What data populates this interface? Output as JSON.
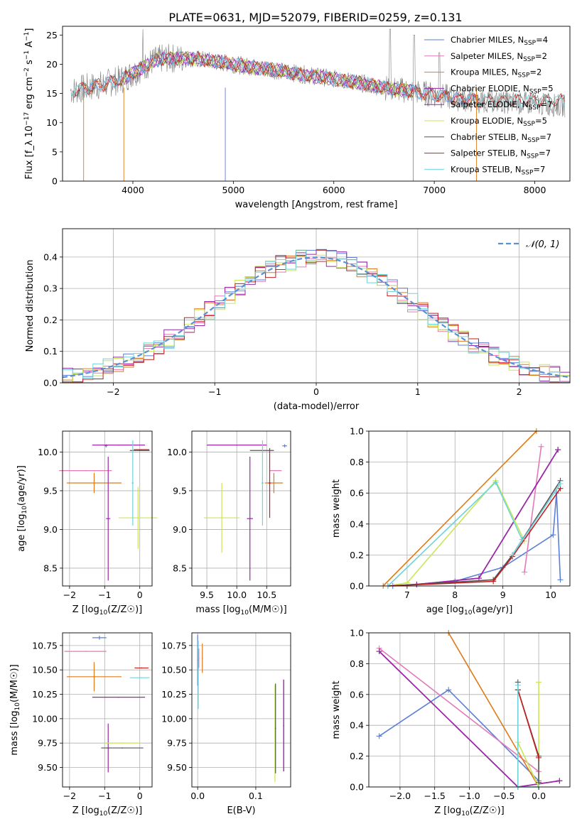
{
  "figure": {
    "title": "PLATE=0631, MJD=52079, FIBERID=0259, z=0.131"
  },
  "colors": {
    "chabrier_miles": "#5b7fd6",
    "salpeter_miles": "#e27ab8",
    "kroupa_miles": "#e07b1a",
    "chabrier_elodie": "#9a27a8",
    "salpeter_elodie": "#9a27a8",
    "kroupa_elodie": "#c8e65a",
    "chabrier_stelib": "#555555",
    "salpeter_stelib": "#c41e1e",
    "kroupa_stelib": "#6fd3d9",
    "normal_curve": "#5b8fd6",
    "grid": "#b0b0b0"
  },
  "chart_data": [
    {
      "id": "spectrum",
      "type": "line",
      "xlabel": "wavelength [Angstrom, rest frame]",
      "ylabel": "Flux [f_λ 10^-17 erg cm^-2 s^-1 A^-1]",
      "xlim": [
        3300,
        8350
      ],
      "ylim": [
        0,
        26.5
      ],
      "xticks": [
        4000,
        5000,
        6000,
        7000,
        8000
      ],
      "yticks": [
        0,
        5,
        10,
        15,
        20,
        25
      ],
      "grid": false,
      "legend_position": "top-right",
      "legend": [
        "Chabrier MILES, N_SSP=4",
        "Salpeter MILES, N_SSP=2",
        "Kroupa MILES, N_SSP=2",
        "Chabrier ELODIE, N_SSP=5",
        "Salpeter ELODIE, N_SSP=7",
        "Kroupa ELODIE, N_SSP=5",
        "Chabrier STELIB, N_SSP=7",
        "Salpeter STELIB, N_SSP=7",
        "Kroupa STELIB, N_SSP=7"
      ],
      "continuum": {
        "x": [
          3400,
          3500,
          3600,
          3700,
          3800,
          3900,
          4000,
          4100,
          4200,
          4300,
          4400,
          4600,
          4800,
          5000,
          5200,
          5400,
          5600,
          5800,
          6000,
          6200,
          6400,
          6600,
          6800,
          7000,
          7200,
          7400
        ],
        "y": [
          15.5,
          15.8,
          16.2,
          16.5,
          17.0,
          17.5,
          18.5,
          19.5,
          20.5,
          21.0,
          21.0,
          21.0,
          20.5,
          20.0,
          19.5,
          19.0,
          18.5,
          18.0,
          17.5,
          17.0,
          16.3,
          15.8,
          15.3,
          14.8,
          14.2,
          13.8
        ]
      }
    },
    {
      "id": "residuals",
      "type": "line",
      "xlabel": "(data-model)/error",
      "ylabel": "Normed distribution",
      "xlim": [
        -2.5,
        2.5
      ],
      "ylim": [
        0,
        0.49
      ],
      "xticks": [
        -2,
        -1,
        0,
        1,
        2
      ],
      "yticks": [
        0.0,
        0.1,
        0.2,
        0.3,
        0.4
      ],
      "grid": true,
      "legend_position": "top-right",
      "legend": [
        "N(0,1)"
      ],
      "series": [
        {
          "name": "N(0,1)",
          "style": "dashed",
          "mean": 0,
          "sigma": 1
        }
      ]
    },
    {
      "id": "age_vs_Z",
      "type": "scatter",
      "xlabel": "Z [log10(Z/Z☉)]",
      "ylabel": "age  [log10(age/yr)]",
      "xlim": [
        -2.2,
        0.35
      ],
      "ylim": [
        8.27,
        10.27
      ],
      "xticks": [
        -2,
        -1,
        0
      ],
      "yticks": [
        8.5,
        9.0,
        9.5,
        10.0
      ],
      "grid": true,
      "points": [
        {
          "key": "chabrier_miles",
          "x": -0.96,
          "y": 10.08,
          "xerr": 0.04,
          "yerr": 0.02
        },
        {
          "key": "salpeter_miles",
          "x": -1.55,
          "y": 9.76,
          "xerr": 0.75,
          "yerr": 0.0
        },
        {
          "key": "kroupa_miles",
          "x": -1.3,
          "y": 9.6,
          "xerr": 0.78,
          "yerr": 0.13
        },
        {
          "key": "chabrier_elodie",
          "x": -0.9,
          "y": 9.14,
          "xerr": 0.06,
          "yerr": 0.8
        },
        {
          "key": "salpeter_elodie",
          "x": -0.6,
          "y": 10.09,
          "xerr": 0.75,
          "yerr": 0.0
        },
        {
          "key": "kroupa_elodie",
          "x": -0.05,
          "y": 9.15,
          "xerr": 0.55,
          "yerr": 0.4
        },
        {
          "key": "chabrier_stelib",
          "x": 0.0,
          "y": 10.02,
          "xerr": 0.28,
          "yerr": 0.0
        },
        {
          "key": "salpeter_stelib",
          "x": 0.05,
          "y": 10.03,
          "xerr": 0.22,
          "yerr": 0.0
        },
        {
          "key": "kroupa_stelib",
          "x": -0.2,
          "y": 9.6,
          "xerr": 0.03,
          "yerr": 0.55
        }
      ]
    },
    {
      "id": "age_vs_mass",
      "type": "scatter",
      "xlabel": "mass [log10(M/M☉)]",
      "ylabel": "",
      "xlim": [
        9.25,
        10.9
      ],
      "ylim": [
        8.27,
        10.27
      ],
      "xticks": [
        9.5,
        10.0,
        10.5
      ],
      "yticks": [
        8.5,
        9.0,
        9.5,
        10.0
      ],
      "grid": true,
      "points": [
        {
          "key": "chabrier_miles",
          "x": 10.8,
          "y": 10.08,
          "xerr": 0.04,
          "yerr": 0.02
        },
        {
          "key": "salpeter_miles",
          "x": 10.65,
          "y": 9.76,
          "xerr": 0.1,
          "yerr": 0.0
        },
        {
          "key": "kroupa_miles",
          "x": 10.62,
          "y": 9.6,
          "xerr": 0.15,
          "yerr": 0.13
        },
        {
          "key": "chabrier_elodie",
          "x": 10.22,
          "y": 9.14,
          "xerr": 0.05,
          "yerr": 0.8
        },
        {
          "key": "salpeter_elodie",
          "x": 10.0,
          "y": 10.09,
          "xerr": 0.5,
          "yerr": 0.0
        },
        {
          "key": "kroupa_elodie",
          "x": 9.75,
          "y": 9.15,
          "xerr": 0.3,
          "yerr": 0.45
        },
        {
          "key": "chabrier_stelib",
          "x": 10.42,
          "y": 10.02,
          "xerr": 0.2,
          "yerr": 0.0
        },
        {
          "key": "salpeter_stelib",
          "x": 10.55,
          "y": 9.6,
          "xerr": 0.02,
          "yerr": 0.45
        },
        {
          "key": "kroupa_stelib",
          "x": 10.43,
          "y": 9.6,
          "xerr": 0.02,
          "yerr": 0.55
        }
      ]
    },
    {
      "id": "massweight_vs_age",
      "type": "line",
      "xlabel": "age  [log10(age/yr)]",
      "ylabel": "mass weight",
      "xlim": [
        6.2,
        10.4
      ],
      "ylim": [
        0,
        1.0
      ],
      "xticks": [
        7,
        8,
        9,
        10
      ],
      "yticks": [
        0.0,
        0.2,
        0.4,
        0.6,
        0.8,
        1.0
      ],
      "grid": true,
      "series": [
        {
          "key": "chabrier_miles",
          "x": [
            6.7,
            8.0,
            9.0,
            10.05,
            10.12,
            10.2
          ],
          "y": [
            0.0,
            0.03,
            0.12,
            0.33,
            0.6,
            0.04
          ]
        },
        {
          "key": "salpeter_miles",
          "x": [
            9.45,
            9.8
          ],
          "y": [
            0.09,
            0.9
          ]
        },
        {
          "key": "kroupa_miles",
          "x": [
            6.5,
            9.7
          ],
          "y": [
            0.0,
            1.0
          ]
        },
        {
          "key": "chabrier_elodie",
          "x": [
            7.2,
            8.5,
            10.15
          ],
          "y": [
            0.01,
            0.05,
            0.88
          ]
        },
        {
          "key": "salpeter_elodie",
          "x": [
            7.2,
            8.5,
            10.15
          ],
          "y": [
            0.01,
            0.05,
            0.88
          ]
        },
        {
          "key": "kroupa_elodie",
          "x": [
            6.6,
            7.0,
            8.85,
            9.45
          ],
          "y": [
            0.0,
            0.02,
            0.68,
            0.29
          ]
        },
        {
          "key": "chabrier_stelib",
          "x": [
            6.6,
            8.8,
            9.2,
            10.2
          ],
          "y": [
            0.0,
            0.04,
            0.2,
            0.68
          ]
        },
        {
          "key": "salpeter_stelib",
          "x": [
            6.6,
            8.8,
            9.2,
            10.2
          ],
          "y": [
            0.0,
            0.03,
            0.19,
            0.63
          ]
        },
        {
          "key": "kroupa_stelib",
          "x": [
            6.6,
            8.85,
            9.4,
            9.2,
            10.2
          ],
          "y": [
            0.0,
            0.67,
            0.3,
            0.2,
            0.66
          ]
        }
      ]
    },
    {
      "id": "mass_vs_Z",
      "type": "scatter",
      "xlabel": "Z [log10(Z/Z☉)]",
      "ylabel": "mass [log10(M/M☉)]",
      "xlim": [
        -2.2,
        0.35
      ],
      "ylim": [
        9.3,
        10.88
      ],
      "xticks": [
        -2,
        -1,
        0
      ],
      "yticks": [
        9.5,
        9.75,
        10.0,
        10.25,
        10.5,
        10.75
      ],
      "grid": true,
      "points": [
        {
          "key": "chabrier_miles",
          "x": -1.15,
          "y": 10.83,
          "xerr": 0.2,
          "yerr": 0.02
        },
        {
          "key": "salpeter_miles",
          "x": -1.55,
          "y": 10.69,
          "xerr": 0.6,
          "yerr": 0.0
        },
        {
          "key": "kroupa_miles",
          "x": -1.3,
          "y": 10.43,
          "xerr": 0.78,
          "yerr": 0.15
        },
        {
          "key": "chabrier_elodie",
          "x": -0.9,
          "y": 9.7,
          "xerr": 0.05,
          "yerr": 0.25
        },
        {
          "key": "salpeter_elodie",
          "x": -0.6,
          "y": 10.22,
          "xerr": 0.75,
          "yerr": 0.0
        },
        {
          "key": "kroupa_elodie",
          "x": -0.5,
          "y": 9.75,
          "xerr": 0.5,
          "yerr": 0.0
        },
        {
          "key": "chabrier_stelib",
          "x": -0.5,
          "y": 9.7,
          "xerr": 0.6,
          "yerr": 0.0
        },
        {
          "key": "salpeter_stelib",
          "x": 0.05,
          "y": 10.52,
          "xerr": 0.2,
          "yerr": 0.0
        },
        {
          "key": "kroupa_stelib",
          "x": 0.0,
          "y": 10.42,
          "xerr": 0.28,
          "yerr": 0.0
        }
      ]
    },
    {
      "id": "mass_vs_ebv",
      "type": "scatter",
      "xlabel": "E(B-V)",
      "ylabel": "",
      "xlim": [
        -0.01,
        0.16
      ],
      "ylim": [
        9.3,
        10.88
      ],
      "xticks": [
        0.0,
        0.1
      ],
      "yticks": [
        9.5,
        9.75,
        10.0,
        10.25,
        10.5,
        10.75
      ],
      "grid": true,
      "points": [
        {
          "key": "chabrier_miles",
          "x": 0.0,
          "y": 10.6,
          "xerr": 0.0,
          "yerr": 0.26
        },
        {
          "key": "salpeter_miles",
          "x": 0.002,
          "y": 10.62,
          "xerr": 0.0,
          "yerr": 0.1
        },
        {
          "key": "kroupa_miles",
          "x": 0.008,
          "y": 10.62,
          "xerr": 0.0,
          "yerr": 0.15
        },
        {
          "key": "chabrier_elodie",
          "x": 0.148,
          "y": 9.93,
          "xerr": 0.0,
          "yerr": 0.47
        },
        {
          "key": "salpeter_elodie",
          "x": 0.148,
          "y": 9.93,
          "xerr": 0.0,
          "yerr": 0.47
        },
        {
          "key": "kroupa_elodie",
          "x": 0.133,
          "y": 9.85,
          "xerr": 0.0,
          "yerr": 0.5
        },
        {
          "key": "chabrier_stelib",
          "x": 0.134,
          "y": 9.9,
          "xerr": 0.0,
          "yerr": 0.46
        },
        {
          "key": "salpeter_stelib",
          "x": 0.001,
          "y": 10.6,
          "xerr": 0.0,
          "yerr": 0.1
        },
        {
          "key": "kroupa_stelib",
          "x": 0.001,
          "y": 10.45,
          "xerr": 0.0,
          "yerr": 0.35
        }
      ]
    },
    {
      "id": "massweight_vs_Z",
      "type": "line",
      "xlabel": "Z [log10(Z/Z☉)]",
      "ylabel": "mass weight",
      "xlim": [
        -2.45,
        0.45
      ],
      "ylim": [
        0,
        1.0
      ],
      "xticks": [
        -2.0,
        -1.5,
        -1.0,
        -0.5,
        0.0
      ],
      "yticks": [
        0.0,
        0.2,
        0.4,
        0.6,
        0.8,
        1.0
      ],
      "grid": true,
      "series": [
        {
          "key": "chabrier_miles",
          "x": [
            -2.3,
            -1.3,
            0.0
          ],
          "y": [
            0.33,
            0.63,
            0.04
          ]
        },
        {
          "key": "salpeter_miles",
          "x": [
            -2.3,
            0.0
          ],
          "y": [
            0.9,
            0.1
          ]
        },
        {
          "key": "kroupa_miles",
          "x": [
            -1.3,
            0.0
          ],
          "y": [
            1.0,
            0.0
          ]
        },
        {
          "key": "chabrier_elodie",
          "x": [
            -2.3,
            -0.3,
            0.3
          ],
          "y": [
            0.88,
            0.0,
            0.04
          ]
        },
        {
          "key": "salpeter_elodie",
          "x": [
            -2.3,
            -0.3,
            0.3
          ],
          "y": [
            0.88,
            0.0,
            0.04
          ]
        },
        {
          "key": "kroupa_elodie",
          "x": [
            -0.3,
            0.0,
            0.0
          ],
          "y": [
            0.29,
            0.0,
            0.68
          ]
        },
        {
          "key": "chabrier_stelib",
          "x": [
            -0.3,
            -0.3,
            0.0,
            0.0
          ],
          "y": [
            0.68,
            0.63,
            0.2,
            0.03
          ]
        },
        {
          "key": "salpeter_stelib",
          "x": [
            -0.3,
            0.0
          ],
          "y": [
            0.63,
            0.19
          ]
        },
        {
          "key": "kroupa_stelib",
          "x": [
            -0.3,
            -0.3,
            0.0
          ],
          "y": [
            0.66,
            0.0,
            0.0
          ]
        }
      ]
    }
  ]
}
